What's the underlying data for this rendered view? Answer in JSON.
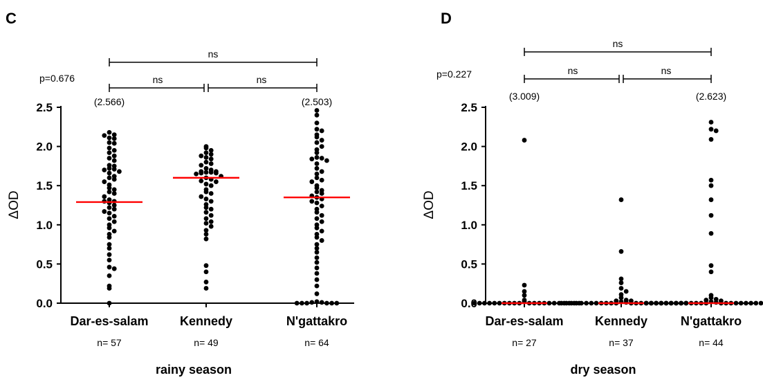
{
  "chart_data": [
    {
      "type": "scatter",
      "panel": "C",
      "xlabel": "rainy season",
      "ylabel": "ΔOD",
      "ylim": [
        0,
        2.5
      ],
      "yticks": [
        "0.0",
        "0.5",
        "1.0",
        "1.5",
        "2.0",
        "2.5"
      ],
      "p_value": "p=0.676",
      "comparisons": [
        {
          "from": 0,
          "to": 2,
          "label": "ns"
        },
        {
          "from": 0,
          "to": 1,
          "label": "ns"
        },
        {
          "from": 1,
          "to": 2,
          "label": "ns"
        }
      ],
      "groups": [
        {
          "name": "Dar-es-salam",
          "n_label": "n= 57",
          "max_label": "(2.566)",
          "median": 1.29,
          "values": [
            2.18,
            2.15,
            2.14,
            2.11,
            2.1,
            2.05,
            2.04,
            1.98,
            1.95,
            1.92,
            1.88,
            1.85,
            1.82,
            1.76,
            1.75,
            1.72,
            1.71,
            1.7,
            1.68,
            1.66,
            1.62,
            1.6,
            1.58,
            1.55,
            1.51,
            1.47,
            1.45,
            1.42,
            1.4,
            1.36,
            1.32,
            1.3,
            1.3,
            1.28,
            1.25,
            1.22,
            1.2,
            1.17,
            1.15,
            1.11,
            1.08,
            1.04,
            1.0,
            0.96,
            0.92,
            0.88,
            0.84,
            0.75,
            0.7,
            0.62,
            0.55,
            0.46,
            0.44,
            0.35,
            0.22,
            0.19,
            0.0
          ]
        },
        {
          "name": "Kennedy",
          "n_label": "n= 49",
          "max_label": "",
          "median": 1.6,
          "values": [
            2.0,
            1.98,
            1.95,
            1.92,
            1.9,
            1.88,
            1.86,
            1.84,
            1.8,
            1.78,
            1.76,
            1.72,
            1.7,
            1.68,
            1.68,
            1.67,
            1.67,
            1.66,
            1.66,
            1.65,
            1.62,
            1.6,
            1.58,
            1.56,
            1.55,
            1.52,
            1.5,
            1.45,
            1.42,
            1.4,
            1.36,
            1.33,
            1.3,
            1.26,
            1.22,
            1.2,
            1.16,
            1.12,
            1.08,
            1.04,
            1.02,
            0.98,
            0.93,
            0.88,
            0.82,
            0.48,
            0.4,
            0.27,
            0.19
          ]
        },
        {
          "name": "N'gattakro",
          "n_label": "n= 64",
          "max_label": "(2.503)",
          "median": 1.35,
          "values": [
            2.46,
            2.4,
            2.3,
            2.22,
            2.2,
            2.15,
            2.12,
            2.08,
            2.05,
            2.0,
            1.96,
            1.92,
            1.86,
            1.85,
            1.84,
            1.82,
            1.78,
            1.72,
            1.68,
            1.65,
            1.6,
            1.57,
            1.55,
            1.5,
            1.47,
            1.44,
            1.42,
            1.4,
            1.37,
            1.35,
            1.33,
            1.3,
            1.28,
            1.24,
            1.2,
            1.16,
            1.12,
            1.08,
            1.04,
            1.0,
            0.96,
            0.92,
            0.88,
            0.84,
            0.8,
            0.75,
            0.7,
            0.65,
            0.58,
            0.52,
            0.45,
            0.38,
            0.3,
            0.22,
            0.12,
            0.02,
            0.01,
            0.01,
            0.0,
            0.0,
            0.0,
            0.0,
            0.0,
            0.0
          ]
        }
      ]
    },
    {
      "type": "scatter",
      "panel": "D",
      "xlabel": "dry season",
      "ylabel": "ΔOD",
      "ylim": [
        0,
        2.5
      ],
      "yticks": [
        "0.0",
        "0.5",
        "1.0",
        "1.5",
        "2.0",
        "2.5"
      ],
      "p_value": "p=0.227",
      "comparisons": [
        {
          "from": 0,
          "to": 2,
          "label": "ns"
        },
        {
          "from": 0,
          "to": 1,
          "label": "ns"
        },
        {
          "from": 1,
          "to": 2,
          "label": "ns"
        }
      ],
      "groups": [
        {
          "name": "Dar-es-salam",
          "n_label": "n= 27",
          "max_label": "(3.009)",
          "median": 0.0,
          "values": [
            2.08,
            0.23,
            0.15,
            0.1,
            0.04,
            0.02,
            0.0,
            0.0,
            0.0,
            0.0,
            0.0,
            0.0,
            0.0,
            0.0,
            0.0,
            0.0,
            0.0,
            0.0,
            0.0,
            0.0,
            0.0,
            0.0,
            0.0,
            0.0,
            0.0,
            0.0,
            0.0
          ]
        },
        {
          "name": "Kennedy",
          "n_label": "n= 37",
          "max_label": "",
          "median": 0.0,
          "values": [
            1.32,
            0.66,
            0.31,
            0.26,
            0.19,
            0.15,
            0.11,
            0.07,
            0.04,
            0.03,
            0.03,
            0.02,
            0.01,
            0.0,
            0.0,
            0.0,
            0.0,
            0.0,
            0.0,
            0.0,
            0.0,
            0.0,
            0.0,
            0.0,
            0.0,
            0.0,
            0.0,
            0.0,
            0.0,
            0.0,
            0.0,
            0.0,
            0.0,
            0.0,
            0.0,
            0.0,
            0.0
          ]
        },
        {
          "name": "N'gattakro",
          "n_label": "n= 44",
          "max_label": "(2.623)",
          "median": 0.0,
          "values": [
            2.31,
            2.22,
            2.2,
            2.09,
            1.57,
            1.5,
            1.32,
            1.12,
            0.89,
            0.48,
            0.4,
            0.1,
            0.07,
            0.05,
            0.04,
            0.03,
            0.02,
            0.01,
            0.0,
            0.0,
            0.0,
            0.0,
            0.0,
            0.0,
            0.0,
            0.0,
            0.0,
            0.0,
            0.0,
            0.0,
            0.0,
            0.0,
            0.0,
            0.0,
            0.0,
            0.0,
            0.0,
            0.0,
            0.0,
            0.0,
            0.0,
            0.0,
            0.0,
            0.0
          ]
        }
      ]
    }
  ],
  "colors": {
    "points": "#000000",
    "median": "#ff0000"
  }
}
